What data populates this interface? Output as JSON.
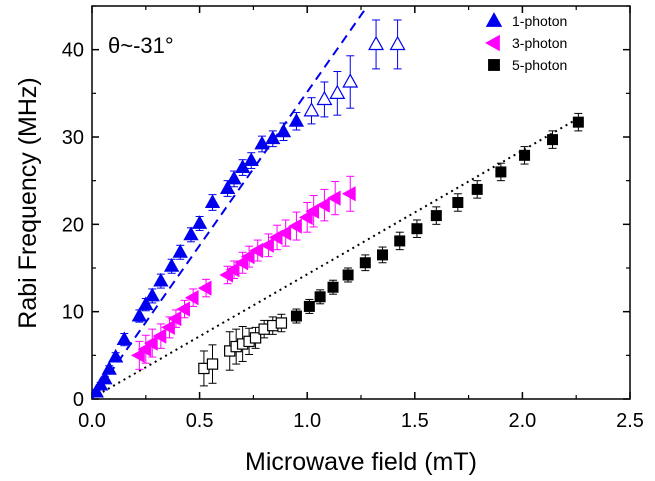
{
  "chart_data": {
    "type": "scatter",
    "title": "",
    "annotation": "θ~-31°",
    "xlabel": "Microwave field (mT)",
    "ylabel": "Rabi Frequency (MHz)",
    "xlim": [
      0,
      2.5
    ],
    "ylim": [
      0,
      45
    ],
    "xticks": [
      0.0,
      0.5,
      1.0,
      1.5,
      2.0,
      2.5
    ],
    "xtick_labels": [
      "0.0",
      "0.5",
      "1.0",
      "1.5",
      "2.0",
      "2.5"
    ],
    "yticks": [
      0,
      10,
      20,
      30,
      40
    ],
    "ytick_labels": [
      "0",
      "10",
      "20",
      "30",
      "40"
    ],
    "legend_position": "top-right",
    "series": [
      {
        "name": "1-photon",
        "marker": "triangle-up",
        "color": "#0000ee",
        "points": [
          {
            "x": 0.02,
            "y": 0.8,
            "err": 0.3
          },
          {
            "x": 0.04,
            "y": 1.6,
            "err": 0.3
          },
          {
            "x": 0.06,
            "y": 2.3,
            "err": 0.3
          },
          {
            "x": 0.08,
            "y": 3.4,
            "err": 0.4
          },
          {
            "x": 0.11,
            "y": 4.8,
            "err": 0.5
          },
          {
            "x": 0.15,
            "y": 6.8,
            "err": 0.7
          },
          {
            "x": 0.22,
            "y": 9.5,
            "err": 0.7
          },
          {
            "x": 0.25,
            "y": 10.8,
            "err": 0.7
          },
          {
            "x": 0.28,
            "y": 11.8,
            "err": 0.8
          },
          {
            "x": 0.32,
            "y": 13.5,
            "err": 0.8
          },
          {
            "x": 0.37,
            "y": 15.2,
            "err": 0.8
          },
          {
            "x": 0.41,
            "y": 16.8,
            "err": 0.8
          },
          {
            "x": 0.46,
            "y": 18.8,
            "err": 0.8
          },
          {
            "x": 0.5,
            "y": 20.1,
            "err": 0.8
          },
          {
            "x": 0.56,
            "y": 22.5,
            "err": 0.9
          },
          {
            "x": 0.63,
            "y": 24.1,
            "err": 0.9
          },
          {
            "x": 0.66,
            "y": 25.2,
            "err": 0.9
          },
          {
            "x": 0.7,
            "y": 26.5,
            "err": 0.9
          },
          {
            "x": 0.74,
            "y": 27.3,
            "err": 0.9
          },
          {
            "x": 0.79,
            "y": 29.2,
            "err": 0.9
          },
          {
            "x": 0.84,
            "y": 29.8,
            "err": 0.9
          },
          {
            "x": 0.89,
            "y": 30.6,
            "err": 1.0
          },
          {
            "x": 0.95,
            "y": 31.8,
            "err": 1.0
          }
        ],
        "open_points": [
          {
            "x": 1.02,
            "y": 33.0,
            "err": 1.5
          },
          {
            "x": 1.08,
            "y": 34.3,
            "err": 2.0
          },
          {
            "x": 1.14,
            "y": 35.0,
            "err": 2.5
          },
          {
            "x": 1.2,
            "y": 36.3,
            "err": 3.0
          },
          {
            "x": 1.32,
            "y": 40.6,
            "err": 2.8
          },
          {
            "x": 1.42,
            "y": 40.6,
            "err": 2.8
          }
        ],
        "fit": {
          "style": "dashed",
          "x": [
            0,
            1.28
          ],
          "y": [
            0,
            45
          ]
        }
      },
      {
        "name": "3-photon",
        "marker": "triangle-left",
        "color": "#ff00ff",
        "points": [
          {
            "x": 0.22,
            "y": 5.0,
            "err": 1.6
          },
          {
            "x": 0.25,
            "y": 5.7,
            "err": 1.6
          },
          {
            "x": 0.28,
            "y": 6.4,
            "err": 1.6
          },
          {
            "x": 0.32,
            "y": 7.2,
            "err": 1.4
          },
          {
            "x": 0.36,
            "y": 8.2,
            "err": 1.2
          },
          {
            "x": 0.39,
            "y": 9.2,
            "err": 1.0
          },
          {
            "x": 0.43,
            "y": 10.3,
            "err": 1.0
          },
          {
            "x": 0.47,
            "y": 11.6,
            "err": 1.0
          },
          {
            "x": 0.53,
            "y": 12.7,
            "err": 1.0
          },
          {
            "x": 0.63,
            "y": 14.2,
            "err": 1.0
          },
          {
            "x": 0.66,
            "y": 14.8,
            "err": 1.0
          },
          {
            "x": 0.7,
            "y": 15.6,
            "err": 1.2
          },
          {
            "x": 0.73,
            "y": 16.3,
            "err": 1.2
          },
          {
            "x": 0.77,
            "y": 17.0,
            "err": 1.2
          },
          {
            "x": 0.82,
            "y": 17.6,
            "err": 1.3
          },
          {
            "x": 0.86,
            "y": 18.5,
            "err": 1.4
          },
          {
            "x": 0.9,
            "y": 19.0,
            "err": 1.5
          },
          {
            "x": 0.95,
            "y": 19.8,
            "err": 1.6
          },
          {
            "x": 1.0,
            "y": 20.8,
            "err": 1.7
          },
          {
            "x": 1.03,
            "y": 21.5,
            "err": 1.8
          },
          {
            "x": 1.08,
            "y": 22.2,
            "err": 1.8
          },
          {
            "x": 1.13,
            "y": 23.0,
            "err": 1.9
          },
          {
            "x": 1.2,
            "y": 23.5,
            "err": 2.0
          }
        ]
      },
      {
        "name": "5-photon",
        "marker": "square",
        "color": "#000000",
        "points": [
          {
            "x": 0.95,
            "y": 9.5,
            "err": 0.8
          },
          {
            "x": 1.01,
            "y": 10.6,
            "err": 0.8
          },
          {
            "x": 1.06,
            "y": 11.7,
            "err": 0.8
          },
          {
            "x": 1.12,
            "y": 12.8,
            "err": 0.8
          },
          {
            "x": 1.19,
            "y": 14.2,
            "err": 0.8
          },
          {
            "x": 1.27,
            "y": 15.6,
            "err": 0.9
          },
          {
            "x": 1.35,
            "y": 16.5,
            "err": 0.9
          },
          {
            "x": 1.43,
            "y": 18.1,
            "err": 1.0
          },
          {
            "x": 1.51,
            "y": 19.5,
            "err": 1.0
          },
          {
            "x": 1.6,
            "y": 21.0,
            "err": 1.0
          },
          {
            "x": 1.7,
            "y": 22.5,
            "err": 1.0
          },
          {
            "x": 1.79,
            "y": 24.0,
            "err": 1.0
          },
          {
            "x": 1.9,
            "y": 26.0,
            "err": 1.0
          },
          {
            "x": 2.01,
            "y": 27.9,
            "err": 1.0
          },
          {
            "x": 2.14,
            "y": 29.7,
            "err": 1.0
          },
          {
            "x": 2.26,
            "y": 31.7,
            "err": 1.0
          }
        ],
        "open_points": [
          {
            "x": 0.52,
            "y": 3.5,
            "err": 2.0
          },
          {
            "x": 0.56,
            "y": 4.0,
            "err": 2.2
          },
          {
            "x": 0.64,
            "y": 5.5,
            "err": 2.2
          },
          {
            "x": 0.67,
            "y": 6.0,
            "err": 2.0
          },
          {
            "x": 0.7,
            "y": 6.3,
            "err": 2.0
          },
          {
            "x": 0.73,
            "y": 6.6,
            "err": 1.5
          },
          {
            "x": 0.76,
            "y": 7.0,
            "err": 1.2
          },
          {
            "x": 0.8,
            "y": 8.0,
            "err": 1.0
          },
          {
            "x": 0.84,
            "y": 8.4,
            "err": 1.0
          },
          {
            "x": 0.88,
            "y": 8.7,
            "err": 1.0
          }
        ],
        "fit": {
          "style": "dotted",
          "x": [
            0.05,
            2.25
          ],
          "y": [
            0.8,
            32.0
          ]
        }
      }
    ]
  }
}
